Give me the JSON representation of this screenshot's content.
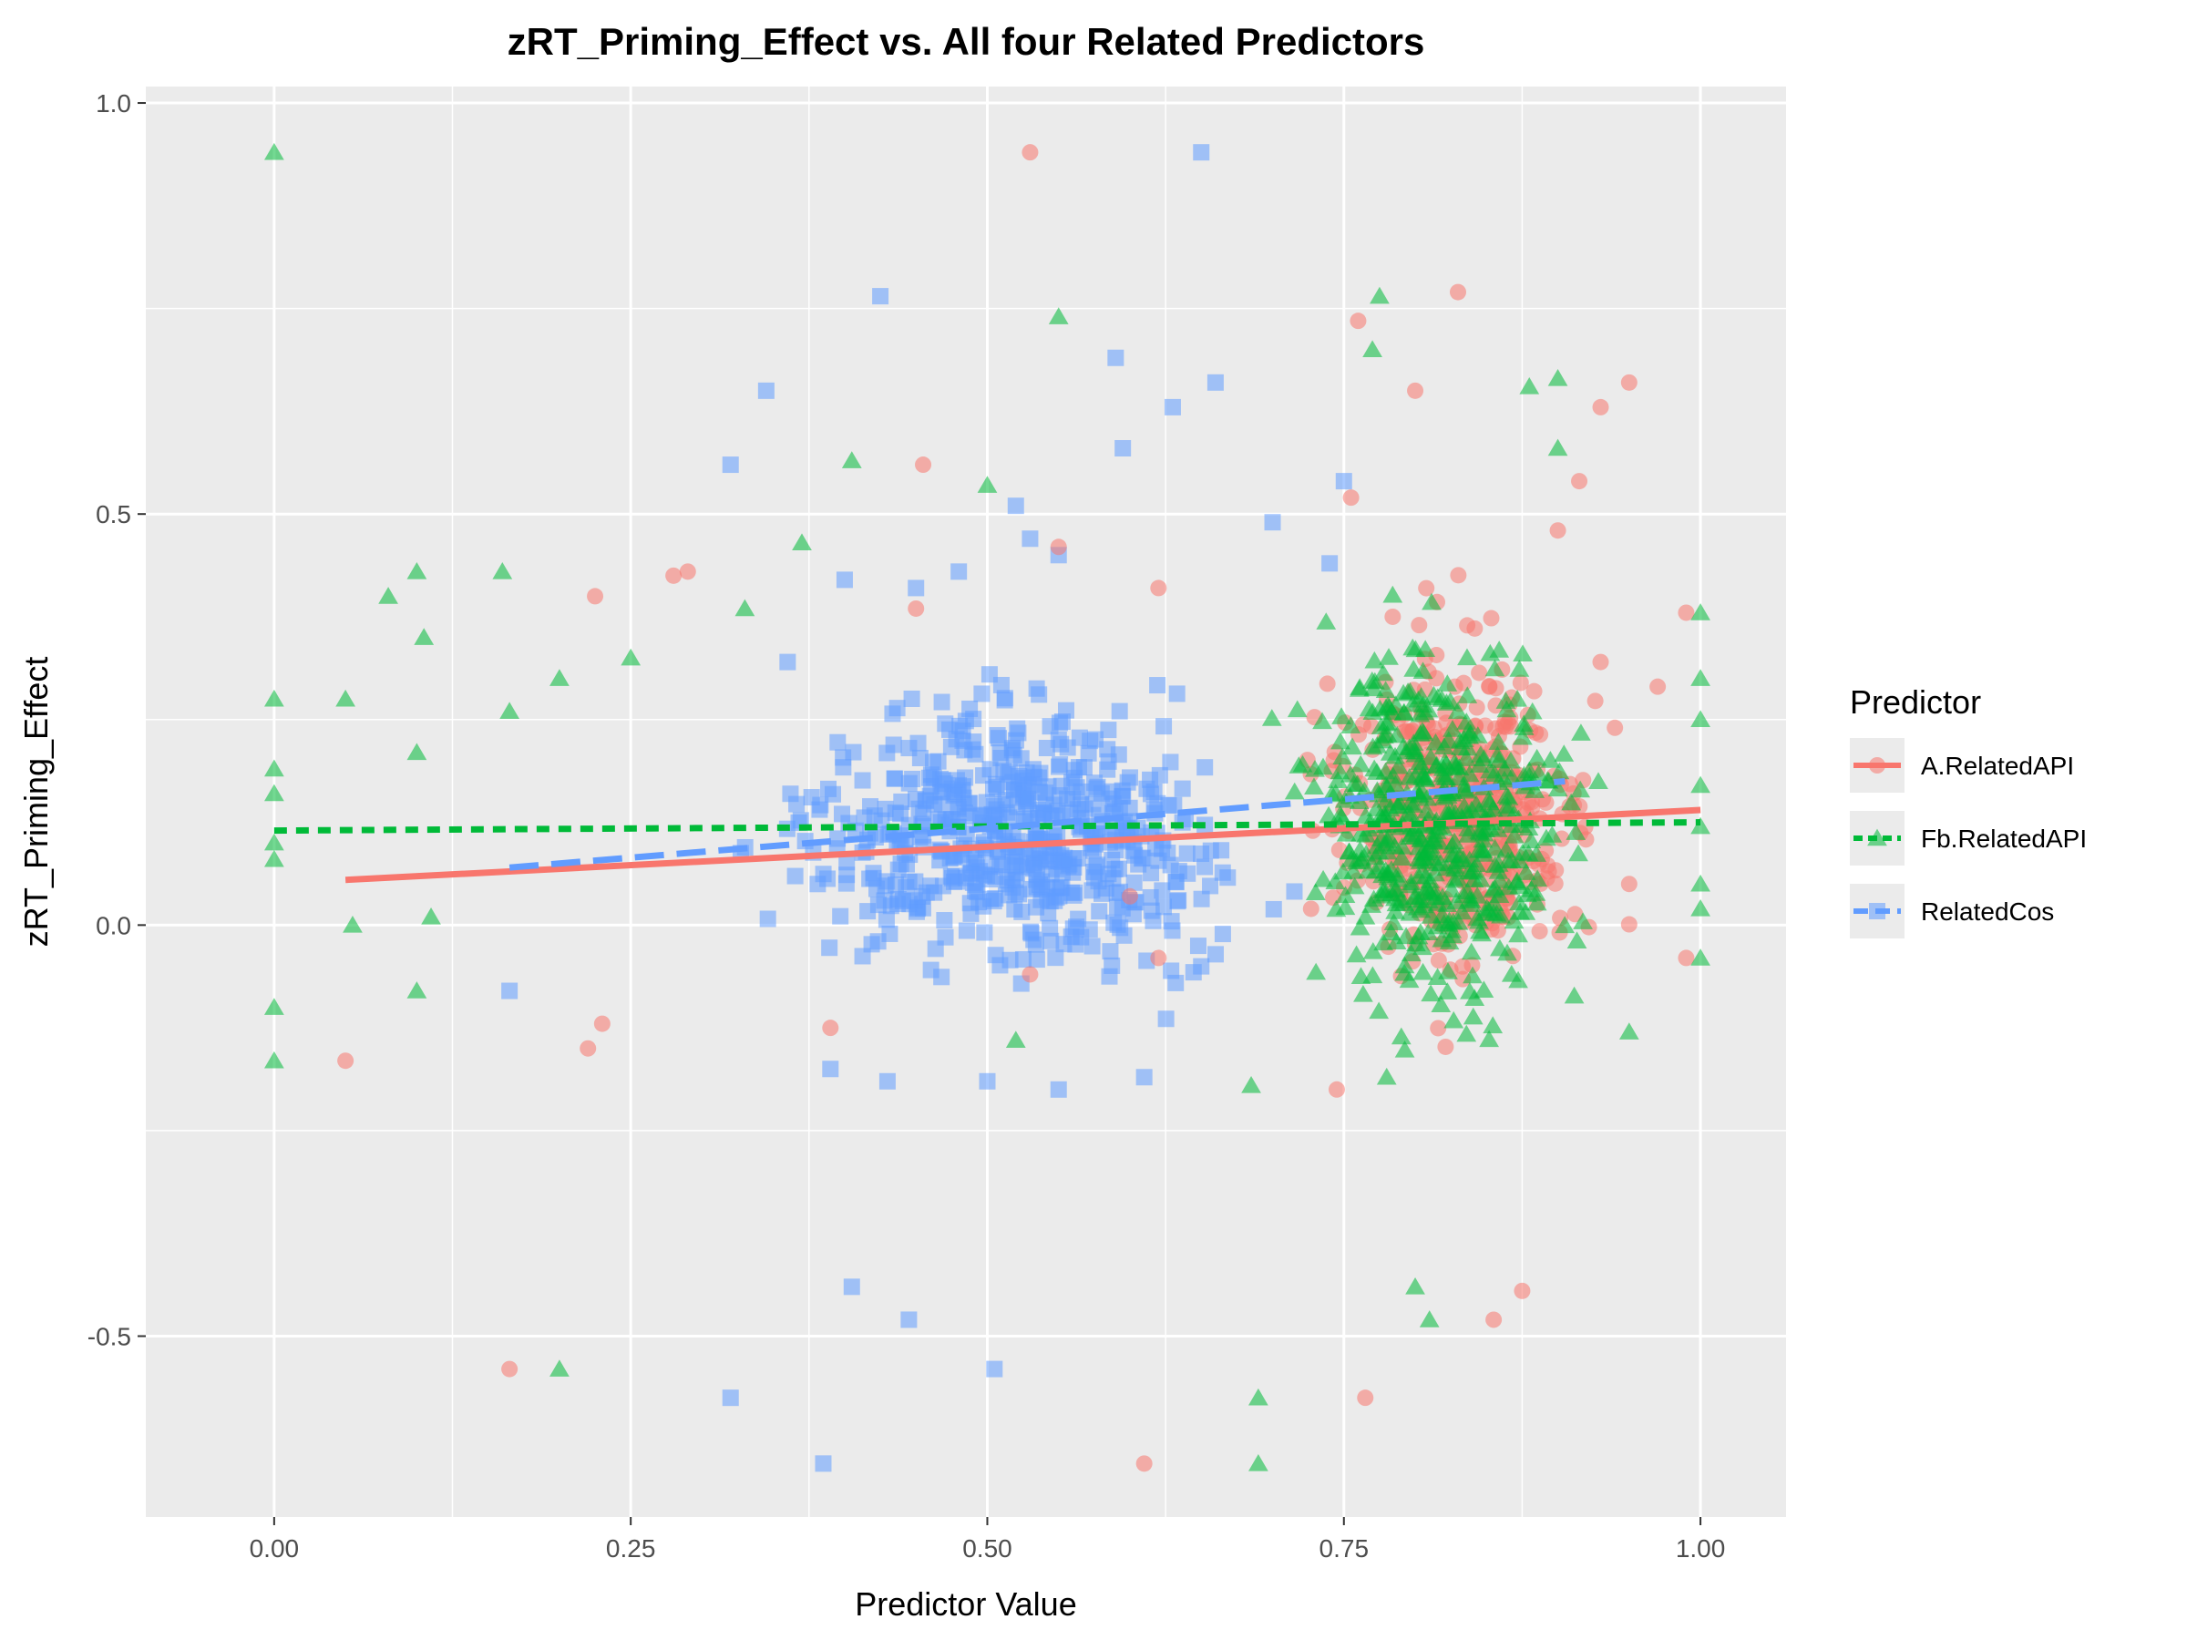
{
  "chart_data": {
    "type": "scatter",
    "title": "zRT_Priming_Effect vs. All four Related Predictors",
    "xlabel": "Predictor Value",
    "ylabel": "zRT_Priming_Effect",
    "xlim": [
      -0.09,
      1.06
    ],
    "ylim": [
      -0.72,
      1.02
    ],
    "x_ticks": [
      0.0,
      0.25,
      0.5,
      0.75,
      1.0
    ],
    "x_tick_labels": [
      "0.00",
      "0.25",
      "0.50",
      "0.75",
      "1.00"
    ],
    "y_ticks": [
      -0.5,
      0.0,
      0.5,
      1.0
    ],
    "y_tick_labels": [
      "-0.5",
      "0.0",
      "0.5",
      "1.0"
    ],
    "grid": true,
    "legend": {
      "title": "Predictor",
      "placement": "right"
    },
    "series": [
      {
        "name": "A.RelatedAPI",
        "color": "#F8766D",
        "marker": "circle",
        "trend_style": "solid",
        "trend": {
          "x0": 0.05,
          "y0": 0.055,
          "x1": 1.0,
          "y1": 0.14
        },
        "sample_points": [
          [
            0.05,
            -0.165
          ],
          [
            0.165,
            -0.54
          ],
          [
            0.225,
            0.4
          ],
          [
            0.28,
            0.425
          ],
          [
            0.29,
            0.43
          ],
          [
            0.45,
            0.385
          ],
          [
            0.455,
            0.56
          ],
          [
            0.53,
            0.94
          ],
          [
            0.55,
            0.46
          ],
          [
            0.62,
            0.41
          ],
          [
            0.755,
            0.52
          ],
          [
            0.76,
            0.735
          ],
          [
            0.765,
            -0.575
          ],
          [
            0.8,
            0.65
          ],
          [
            0.83,
            0.77
          ],
          [
            0.875,
            -0.445
          ],
          [
            0.855,
            -0.48
          ],
          [
            0.61,
            -0.655
          ],
          [
            0.9,
            0.48
          ],
          [
            0.915,
            0.54
          ],
          [
            0.93,
            0.63
          ],
          [
            0.95,
            0.66
          ],
          [
            0.99,
            0.38
          ],
          [
            0.99,
            -0.04
          ],
          [
            0.95,
            0.05
          ],
          [
            0.93,
            0.32
          ],
          [
            0.94,
            0.24
          ],
          [
            0.97,
            0.29
          ],
          [
            0.39,
            -0.125
          ],
          [
            0.22,
            -0.15
          ],
          [
            0.23,
            -0.12
          ],
          [
            0.6,
            0.035
          ],
          [
            0.62,
            -0.04
          ],
          [
            0.53,
            -0.06
          ],
          [
            0.745,
            -0.2
          ]
        ]
      },
      {
        "name": "Fb.RelatedAPI",
        "color": "#00BA38",
        "marker": "triangle",
        "trend_style": "dashed",
        "trend": {
          "x0": 0.0,
          "y0": 0.115,
          "x1": 1.0,
          "y1": 0.125
        },
        "sample_points": [
          [
            0.0,
            0.94
          ],
          [
            0.0,
            0.275
          ],
          [
            0.0,
            0.19
          ],
          [
            0.0,
            0.16
          ],
          [
            0.0,
            0.1
          ],
          [
            0.0,
            0.08
          ],
          [
            0.0,
            -0.1
          ],
          [
            0.0,
            -0.165
          ],
          [
            0.05,
            0.275
          ],
          [
            0.055,
            0.0
          ],
          [
            0.08,
            0.4
          ],
          [
            0.1,
            0.43
          ],
          [
            0.1,
            0.21
          ],
          [
            0.1,
            -0.08
          ],
          [
            0.105,
            0.35
          ],
          [
            0.11,
            0.01
          ],
          [
            0.16,
            0.43
          ],
          [
            0.165,
            0.26
          ],
          [
            0.2,
            0.3
          ],
          [
            0.2,
            -0.54
          ],
          [
            0.25,
            0.325
          ],
          [
            0.33,
            0.385
          ],
          [
            0.37,
            0.465
          ],
          [
            0.405,
            0.565
          ],
          [
            0.5,
            0.535
          ],
          [
            0.55,
            0.74
          ],
          [
            0.69,
            -0.575
          ],
          [
            0.69,
            -0.655
          ],
          [
            0.685,
            -0.195
          ],
          [
            0.77,
            0.7
          ],
          [
            0.775,
            0.765
          ],
          [
            0.8,
            -0.44
          ],
          [
            0.81,
            -0.48
          ],
          [
            0.88,
            0.655
          ],
          [
            0.9,
            0.665
          ],
          [
            0.9,
            0.58
          ],
          [
            1.0,
            0.38
          ],
          [
            1.0,
            0.3
          ],
          [
            1.0,
            0.25
          ],
          [
            1.0,
            0.17
          ],
          [
            1.0,
            0.12
          ],
          [
            1.0,
            0.05
          ],
          [
            1.0,
            0.02
          ],
          [
            1.0,
            -0.04
          ],
          [
            0.95,
            -0.13
          ],
          [
            0.78,
            -0.185
          ],
          [
            0.52,
            -0.14
          ]
        ]
      },
      {
        "name": "RelatedCos",
        "color": "#619CFF",
        "marker": "square",
        "trend_style": "longdash",
        "trend": {
          "x0": 0.165,
          "y0": 0.07,
          "x1": 0.905,
          "y1": 0.175
        },
        "sample_points": [
          [
            0.165,
            -0.08
          ],
          [
            0.32,
            -0.575
          ],
          [
            0.32,
            0.56
          ],
          [
            0.345,
            0.65
          ],
          [
            0.385,
            -0.655
          ],
          [
            0.405,
            -0.44
          ],
          [
            0.425,
            0.765
          ],
          [
            0.445,
            -0.48
          ],
          [
            0.505,
            -0.54
          ],
          [
            0.59,
            0.69
          ],
          [
            0.595,
            0.58
          ],
          [
            0.63,
            0.63
          ],
          [
            0.65,
            0.94
          ],
          [
            0.66,
            0.66
          ],
          [
            0.75,
            0.54
          ],
          [
            0.43,
            -0.19
          ],
          [
            0.55,
            -0.2
          ],
          [
            0.61,
            -0.185
          ],
          [
            0.39,
            -0.175
          ],
          [
            0.5,
            -0.19
          ],
          [
            0.36,
            0.32
          ],
          [
            0.4,
            0.42
          ],
          [
            0.45,
            0.41
          ],
          [
            0.48,
            0.43
          ],
          [
            0.52,
            0.51
          ],
          [
            0.53,
            0.47
          ],
          [
            0.55,
            0.45
          ],
          [
            0.7,
            0.49
          ],
          [
            0.74,
            0.44
          ]
        ]
      }
    ]
  }
}
